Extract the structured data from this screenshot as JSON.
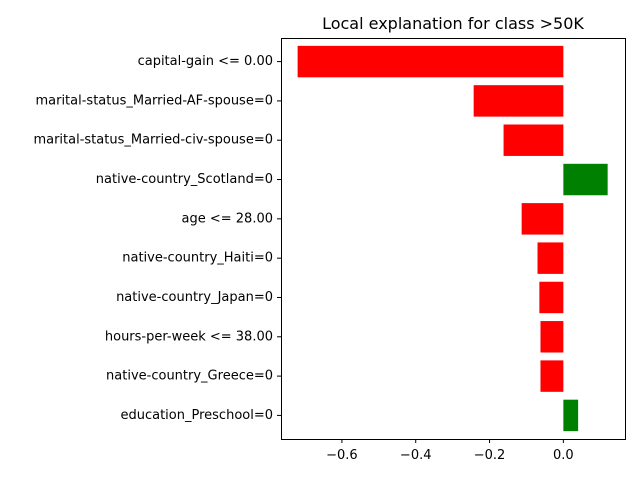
{
  "chart_data": {
    "type": "bar",
    "orientation": "horizontal",
    "title": "Local explanation for class >50K",
    "xlabel": "",
    "ylabel": "",
    "categories": [
      "capital-gain <= 0.00",
      "marital-status_Married-AF-spouse=0",
      "marital-status_Married-civ-spouse=0",
      "native-country_Scotland=0",
      "age <= 28.00",
      "native-country_Haiti=0",
      "native-country_Japan=0",
      "hours-per-week <= 38.00",
      "native-country_Greece=0",
      "education_Preschool=0"
    ],
    "values": [
      -0.72,
      -0.243,
      -0.162,
      0.12,
      -0.113,
      -0.07,
      -0.065,
      -0.062,
      -0.062,
      0.04
    ],
    "xlim": [
      -0.765,
      0.167
    ],
    "xticks": [
      -0.6,
      -0.4,
      -0.2,
      0.0
    ],
    "xtick_labels": [
      "−0.6",
      "−0.4",
      "−0.2",
      "0.0"
    ],
    "colors": {
      "positive": "#008000",
      "negative": "#ff0000"
    },
    "grid": false,
    "legend": "none"
  }
}
